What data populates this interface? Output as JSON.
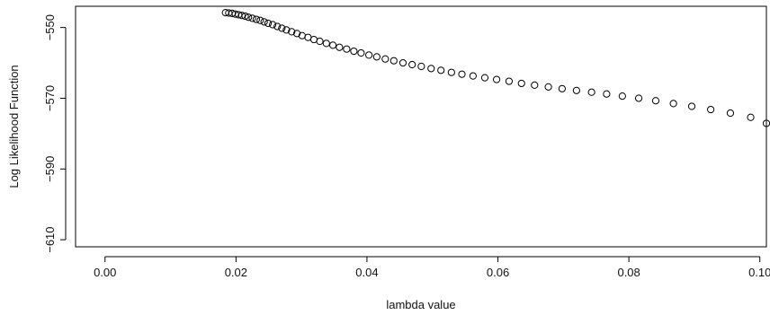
{
  "chart_data": {
    "type": "scatter",
    "title": "",
    "xlabel": "lambda value",
    "ylabel": "Log Likelihood Function",
    "xlim": [
      -0.0045,
      0.101
    ],
    "ylim": [
      -612.0,
      -544.0
    ],
    "xticks": [
      0.0,
      0.02,
      0.04,
      0.06,
      0.08,
      0.1
    ],
    "xtick_labels": [
      "0.00",
      "0.02",
      "0.04",
      "0.06",
      "0.08",
      "0.10"
    ],
    "yticks": [
      -550,
      -570,
      -590,
      -610
    ],
    "ytick_labels": [
      "−550",
      "−570",
      "−590",
      "−610"
    ],
    "grid": false,
    "marker": "open-circle",
    "marker_color": "#000000",
    "series": [
      {
        "x": [
          0.0184,
          0.0189,
          0.0194,
          0.0199,
          0.0204,
          0.0209,
          0.0214,
          0.0219,
          0.0225,
          0.0231,
          0.0237,
          0.0243,
          0.0249,
          0.0256,
          0.0263,
          0.027,
          0.0277,
          0.0285,
          0.0293,
          0.0301,
          0.031,
          0.0319,
          0.0328,
          0.0338,
          0.0348,
          0.0358,
          0.0369,
          0.038,
          0.0391,
          0.0403,
          0.0415,
          0.0428,
          0.0441,
          0.0455,
          0.0469,
          0.0483,
          0.0498,
          0.0513,
          0.0529,
          0.0545,
          0.0562,
          0.058,
          0.0598,
          0.0617,
          0.0636,
          0.0656,
          0.0677,
          0.0698,
          0.072,
          0.0743,
          0.0766,
          0.079,
          0.0815,
          0.0841,
          0.0868,
          0.0896,
          0.0925,
          0.0955,
          0.0986,
          0.101
        ],
        "y": [
          -545.8,
          -545.9,
          -546.0,
          -546.2,
          -546.4,
          -546.6,
          -546.8,
          -547.1,
          -547.4,
          -547.7,
          -548.0,
          -548.4,
          -548.8,
          -549.2,
          -549.7,
          -550.2,
          -550.7,
          -551.2,
          -551.7,
          -552.3,
          -552.8,
          -553.4,
          -553.9,
          -554.5,
          -555.0,
          -555.6,
          -556.1,
          -556.7,
          -557.2,
          -557.8,
          -558.3,
          -558.9,
          -559.4,
          -560.0,
          -560.5,
          -561.0,
          -561.6,
          -562.1,
          -562.7,
          -563.2,
          -563.7,
          -564.2,
          -564.7,
          -565.2,
          -565.8,
          -566.3,
          -566.8,
          -567.3,
          -567.8,
          -568.3,
          -568.8,
          -569.4,
          -570.0,
          -570.7,
          -571.5,
          -572.3,
          -573.2,
          -574.2,
          -575.4,
          -577.1
        ]
      }
    ]
  }
}
